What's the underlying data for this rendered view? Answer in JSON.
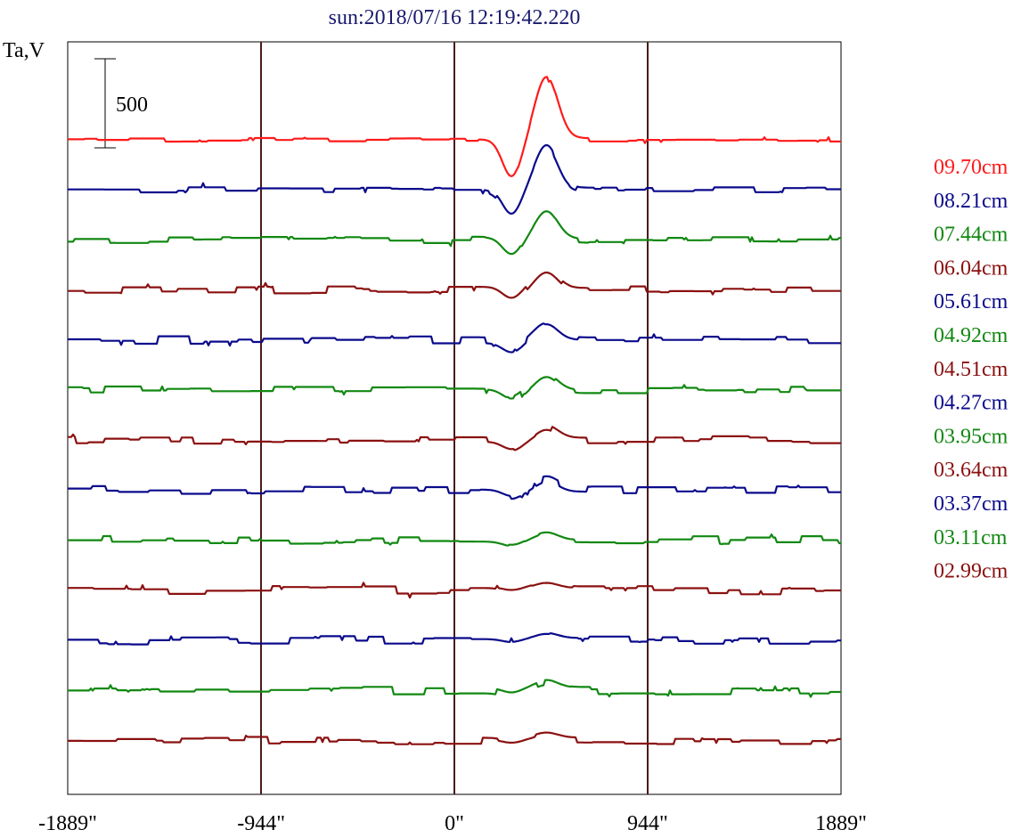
{
  "header": {
    "title": "sun:2018/07/16 12:19:42.220",
    "ylabel": "Ta,V",
    "scale_bar_label": "500"
  },
  "colors": {
    "title": "#1a1a6e",
    "frame": "#000000",
    "limb_lines": "#4a1a1a",
    "red": "#ff1a1a",
    "blue": "#0a0a8c",
    "green": "#118811",
    "maroon": "#8b1010"
  },
  "chart_data": {
    "type": "line",
    "title": "sun:2018/07/16 12:19:42.220",
    "xlabel": "",
    "ylabel": "Ta,V",
    "xlim": [
      -1889,
      1889
    ],
    "x_ticks": [
      -1889,
      -944,
      0,
      944,
      1889
    ],
    "x_tick_labels": [
      "-1889\"",
      "-944\"",
      "0\"",
      "944\"",
      "1889\""
    ],
    "vertical_lines_at": [
      -944,
      0,
      944
    ],
    "scale_bar": 500,
    "grid": false,
    "legend_position": "right",
    "series": [
      {
        "name": "09.70cm",
        "color": "#ff1a1a",
        "amp": 1.0
      },
      {
        "name": "08.21cm",
        "color": "#0a0a8c",
        "amp": 0.68
      },
      {
        "name": "07.44cm",
        "color": "#118811",
        "amp": 0.45
      },
      {
        "name": "06.04cm",
        "color": "#8b1010",
        "amp": 0.3
      },
      {
        "name": "05.61cm",
        "color": "#0a0a8c",
        "amp": 0.25
      },
      {
        "name": "04.92cm",
        "color": "#118811",
        "amp": 0.25
      },
      {
        "name": "04.51cm",
        "color": "#8b1010",
        "amp": 0.2
      },
      {
        "name": "04.27cm",
        "color": "#0a0a8c",
        "amp": 0.17
      },
      {
        "name": "03.95cm",
        "color": "#118811",
        "amp": 0.12
      },
      {
        "name": "03.64cm",
        "color": "#8b1010",
        "amp": 0.08
      },
      {
        "name": "03.37cm",
        "color": "#0a0a8c",
        "amp": 0.08
      },
      {
        "name": "03.11cm",
        "color": "#118811",
        "amp": 0.12
      },
      {
        "name": "02.99cm",
        "color": "#8b1010",
        "amp": 0.08
      }
    ]
  }
}
